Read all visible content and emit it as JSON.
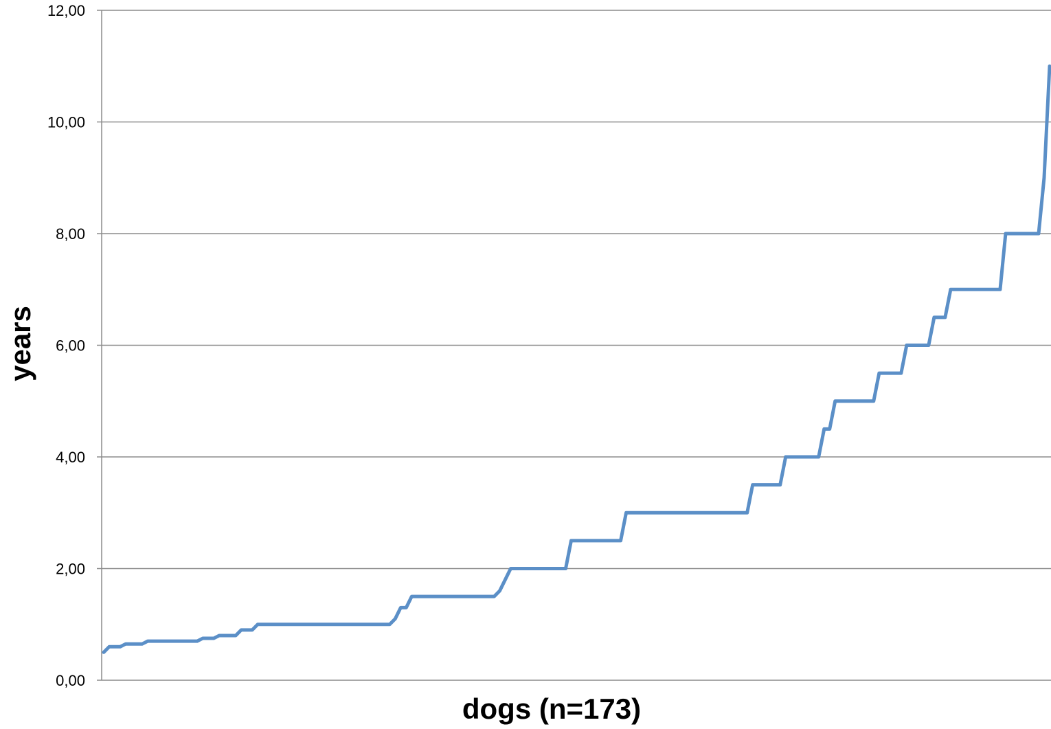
{
  "chart_data": {
    "type": "line",
    "title": "",
    "xlabel": "dogs (n=173)",
    "ylabel": "years",
    "ylim": [
      0,
      12
    ],
    "xlim": [
      1,
      173
    ],
    "y_ticks": [
      0,
      2,
      4,
      6,
      8,
      10,
      12
    ],
    "y_tick_labels": [
      "0,00",
      "2,00",
      "4,00",
      "6,00",
      "8,00",
      "10,00",
      "12,00"
    ],
    "grid": true,
    "legend": "none",
    "series_color": "#5B8FC7",
    "series": [
      {
        "values": [
          0.5,
          0.6,
          0.6,
          0.6,
          0.65,
          0.65,
          0.65,
          0.65,
          0.7,
          0.7,
          0.7,
          0.7,
          0.7,
          0.7,
          0.7,
          0.7,
          0.7,
          0.7,
          0.75,
          0.75,
          0.75,
          0.8,
          0.8,
          0.8,
          0.8,
          0.9,
          0.9,
          0.9,
          1,
          1,
          1,
          1,
          1,
          1,
          1,
          1,
          1,
          1,
          1,
          1,
          1,
          1,
          1,
          1,
          1,
          1,
          1,
          1,
          1,
          1,
          1,
          1,
          1,
          1.1,
          1.3,
          1.3,
          1.5,
          1.5,
          1.5,
          1.5,
          1.5,
          1.5,
          1.5,
          1.5,
          1.5,
          1.5,
          1.5,
          1.5,
          1.5,
          1.5,
          1.5,
          1.5,
          1.6,
          1.8,
          2,
          2,
          2,
          2,
          2,
          2,
          2,
          2,
          2,
          2,
          2,
          2.5,
          2.5,
          2.5,
          2.5,
          2.5,
          2.5,
          2.5,
          2.5,
          2.5,
          2.5,
          3,
          3,
          3,
          3,
          3,
          3,
          3,
          3,
          3,
          3,
          3,
          3,
          3,
          3,
          3,
          3,
          3,
          3,
          3,
          3,
          3,
          3,
          3,
          3.5,
          3.5,
          3.5,
          3.5,
          3.5,
          3.5,
          4,
          4,
          4,
          4,
          4,
          4,
          4,
          4.5,
          4.5,
          5,
          5,
          5,
          5,
          5,
          5,
          5,
          5,
          5.5,
          5.5,
          5.5,
          5.5,
          5.5,
          6,
          6,
          6,
          6,
          6,
          6.5,
          6.5,
          6.5,
          7,
          7,
          7,
          7,
          7,
          7,
          7,
          7,
          7,
          7,
          8,
          8,
          8,
          8,
          8,
          8,
          8,
          9,
          11
        ]
      }
    ]
  }
}
